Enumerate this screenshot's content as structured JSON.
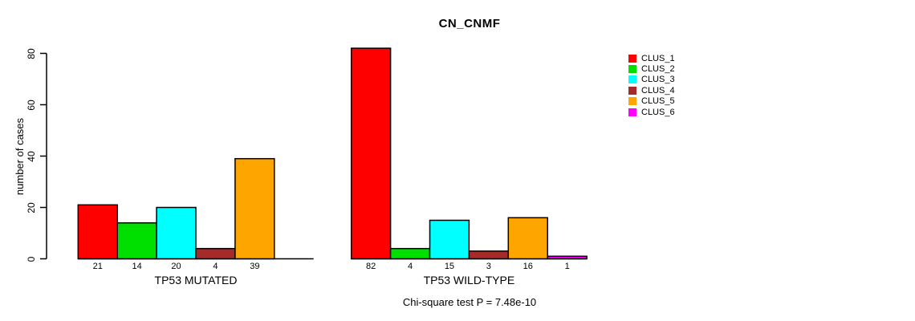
{
  "title": "CN_CNMF",
  "chart_data": {
    "type": "bar",
    "title": "CN_CNMF",
    "ylabel": "number of cases",
    "ylim": [
      0,
      80
    ],
    "yticks": [
      0,
      20,
      40,
      60,
      80
    ],
    "grid": false,
    "legend_position": "right",
    "series": [
      {
        "name": "CLUS_1",
        "color": "#ff0000"
      },
      {
        "name": "CLUS_2",
        "color": "#00e000"
      },
      {
        "name": "CLUS_3",
        "color": "#00ffff"
      },
      {
        "name": "CLUS_4",
        "color": "#a52a2a"
      },
      {
        "name": "CLUS_5",
        "color": "#ffa500"
      },
      {
        "name": "CLUS_6",
        "color": "#ff00ff"
      }
    ],
    "groups": [
      {
        "label": "TP53 MUTATED",
        "values": [
          21,
          14,
          20,
          4,
          39,
          null
        ]
      },
      {
        "label": "TP53 WILD-TYPE",
        "values": [
          82,
          4,
          15,
          3,
          16,
          1
        ]
      }
    ],
    "footnote": "Chi-square test P = 7.48e-10"
  }
}
